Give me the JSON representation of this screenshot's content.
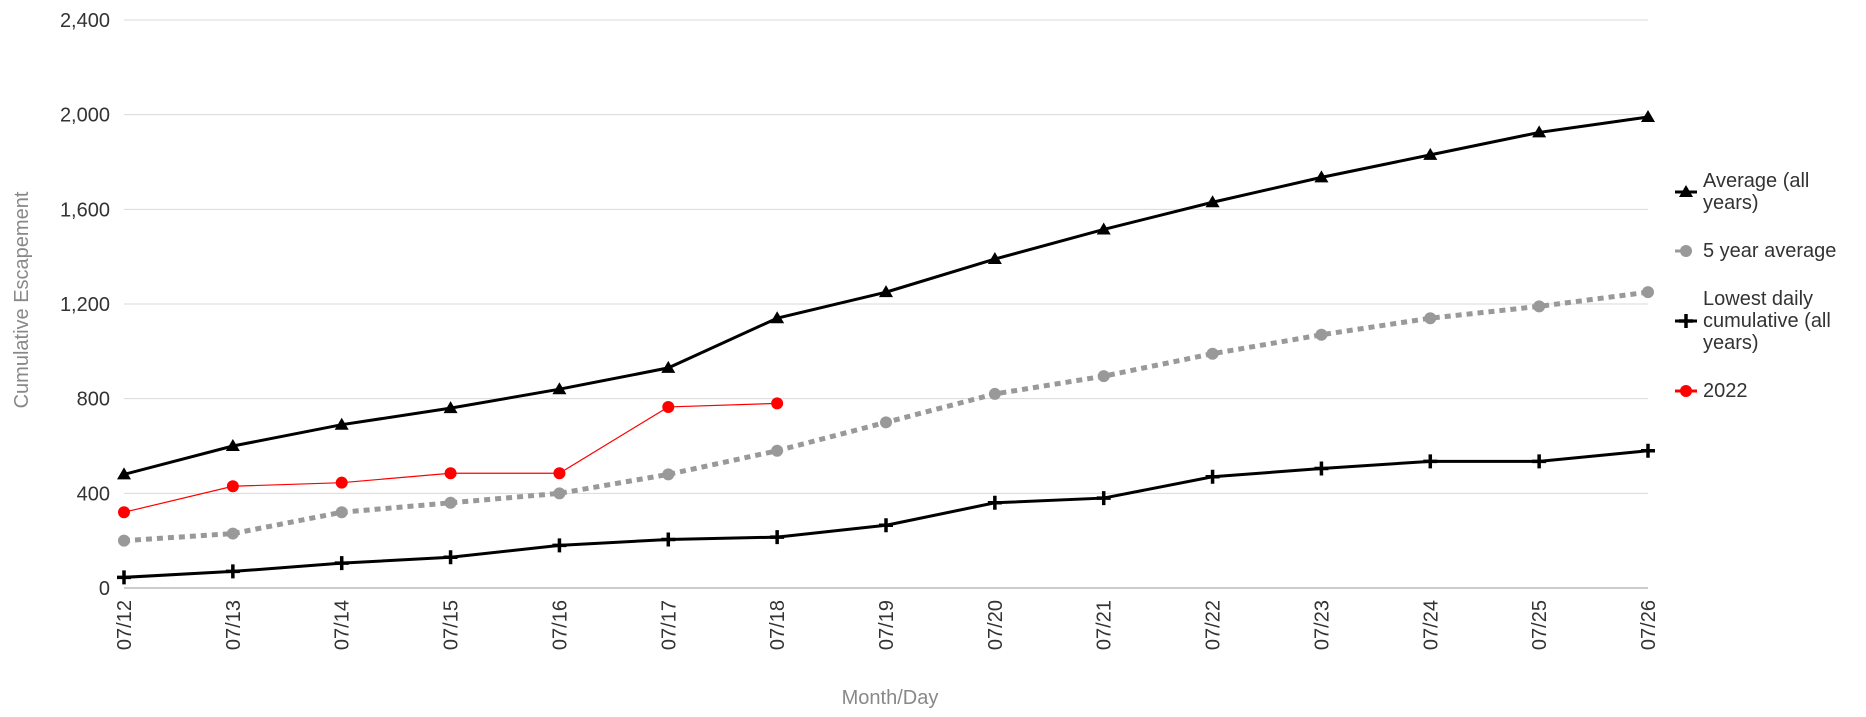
{
  "chart_data": {
    "type": "line",
    "x_label": "Month/Day",
    "y_label": "Cumulative Escapement",
    "categories": [
      "07/12",
      "07/13",
      "07/14",
      "07/15",
      "07/16",
      "07/17",
      "07/18",
      "07/19",
      "07/20",
      "07/21",
      "07/22",
      "07/23",
      "07/24",
      "07/25",
      "07/26"
    ],
    "ylim": [
      0,
      2400
    ],
    "yticks": [
      0,
      {
        "value": 400,
        "label": "400"
      },
      {
        "value": 800,
        "label": "800"
      },
      {
        "value": 1200,
        "label": "1,200"
      },
      {
        "value": 1600,
        "label": "1,600"
      },
      {
        "value": 2000,
        "label": "2,000"
      },
      {
        "value": 2400,
        "label": "2,400"
      }
    ],
    "grid": true,
    "legend": "right",
    "series": [
      {
        "name": "Average (all years)",
        "color": "#000000",
        "marker": "triangle",
        "dash": "solid",
        "values": [
          480,
          600,
          690,
          760,
          840,
          930,
          1140,
          1250,
          1390,
          1515,
          1630,
          1735,
          1830,
          1925,
          1990
        ]
      },
      {
        "name": "5 year average",
        "color": "#999999",
        "marker": "circle",
        "dash": "dotted",
        "values": [
          200,
          230,
          320,
          360,
          400,
          480,
          580,
          700,
          820,
          895,
          990,
          1070,
          1140,
          1190,
          1250
        ]
      },
      {
        "name": "Lowest daily cumulative (all years)",
        "color": "#000000",
        "marker": "plus",
        "dash": "solid",
        "values": [
          45,
          70,
          105,
          130,
          180,
          205,
          215,
          265,
          360,
          380,
          470,
          505,
          535,
          535,
          580
        ]
      },
      {
        "name": "2022",
        "color": "#ff0000",
        "marker": "circle",
        "dash": "thin",
        "values": [
          320,
          430,
          445,
          485,
          485,
          765,
          780,
          null,
          null,
          null,
          null,
          null,
          null,
          null,
          null
        ]
      }
    ]
  }
}
